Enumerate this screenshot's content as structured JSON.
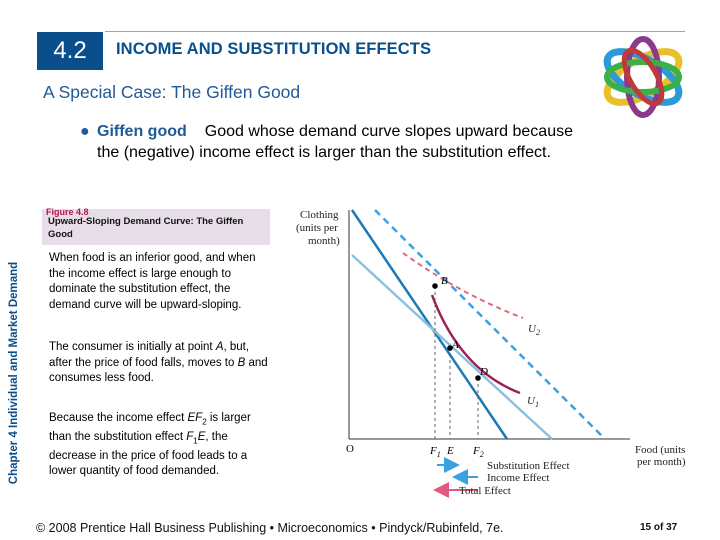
{
  "header": {
    "section_number": "4.2",
    "title": "INCOME AND SUBSTITUTION EFFECTS"
  },
  "subtitle": "A Special Case: The Giffen Good",
  "bullet": {
    "term": "Giffen good",
    "definition": "Good whose demand curve slopes upward because the (negative) income effect is larger than the substitution effect."
  },
  "figure": {
    "label": "Figure 4.8",
    "caption": "Upward-Sloping Demand Curve: The Giffen Good"
  },
  "paragraphs": {
    "p1": "When food is an inferior good, and when the income effect is large enough to dominate the substitution effect, the demand curve will be upward-sloping.",
    "p2_a": "The consumer is initially at point ",
    "p2_A": "A",
    "p2_b": ", but, after the price of food falls, moves to ",
    "p2_B": "B",
    "p2_c": " and consumes less food.",
    "p3_a": "Because the income effect ",
    "p3_EF": "EF",
    "p3_EF_sub": "2",
    "p3_b": " is larger than the substitution effect ",
    "p3_F1": "F",
    "p3_F1_sub": "1",
    "p3_E": "E",
    "p3_c": ", the decrease in the price of food leads to a lower quantity of food demanded."
  },
  "diagram": {
    "y_axis_label": [
      "Clothing",
      "(units per",
      "month)"
    ],
    "x_axis_label": [
      "Food (units",
      "per month)"
    ],
    "origin": "O",
    "points": {
      "A": "A",
      "B": "B",
      "D": "D"
    },
    "curves": {
      "U1": "U",
      "U1_sub": "1",
      "U2": "U",
      "U2_sub": "2"
    },
    "x_ticks": {
      "F1": "F",
      "F1_sub": "1",
      "E": "E",
      "F2": "F",
      "F2_sub": "2"
    },
    "legend": {
      "substitution": "Substitution Effect",
      "income": "Income Effect",
      "total": "Total Effect"
    },
    "colors": {
      "budget": "#1a7ab8",
      "budget_light": "#8cc0e0",
      "dashed": "#3aa0e0",
      "u1": "#9c1f55",
      "u2": "#e06a7a",
      "arrow": "#3aa0e0",
      "total_arrow": "#e05a80"
    }
  },
  "vertical_label": "Chapter 4  Individual and Market Demand",
  "footer": {
    "copyright": "© 2008 Prentice Hall Business Publishing  •  Microeconomics  •  Pindyck/Rubinfeld, 7e.",
    "page": "15 of 37"
  }
}
